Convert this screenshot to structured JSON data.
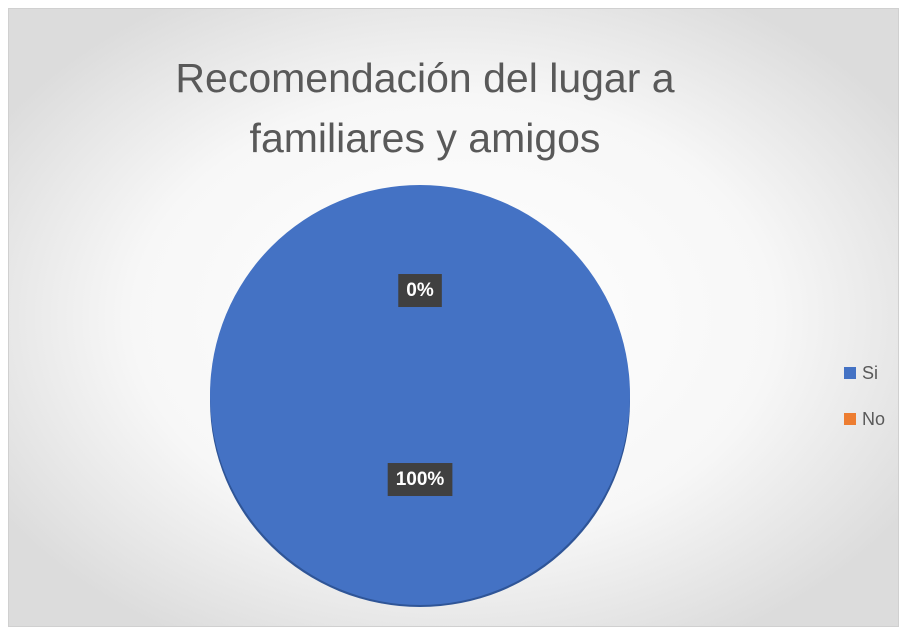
{
  "chart_data": {
    "type": "pie",
    "title": "Recomendación del lugar a familiares y amigos",
    "categories": [
      "Si",
      "No"
    ],
    "values": [
      100,
      0
    ],
    "value_labels": [
      "100%",
      "0%"
    ],
    "colors": [
      "#4472c4",
      "#ed7d31"
    ],
    "legend": "right"
  }
}
